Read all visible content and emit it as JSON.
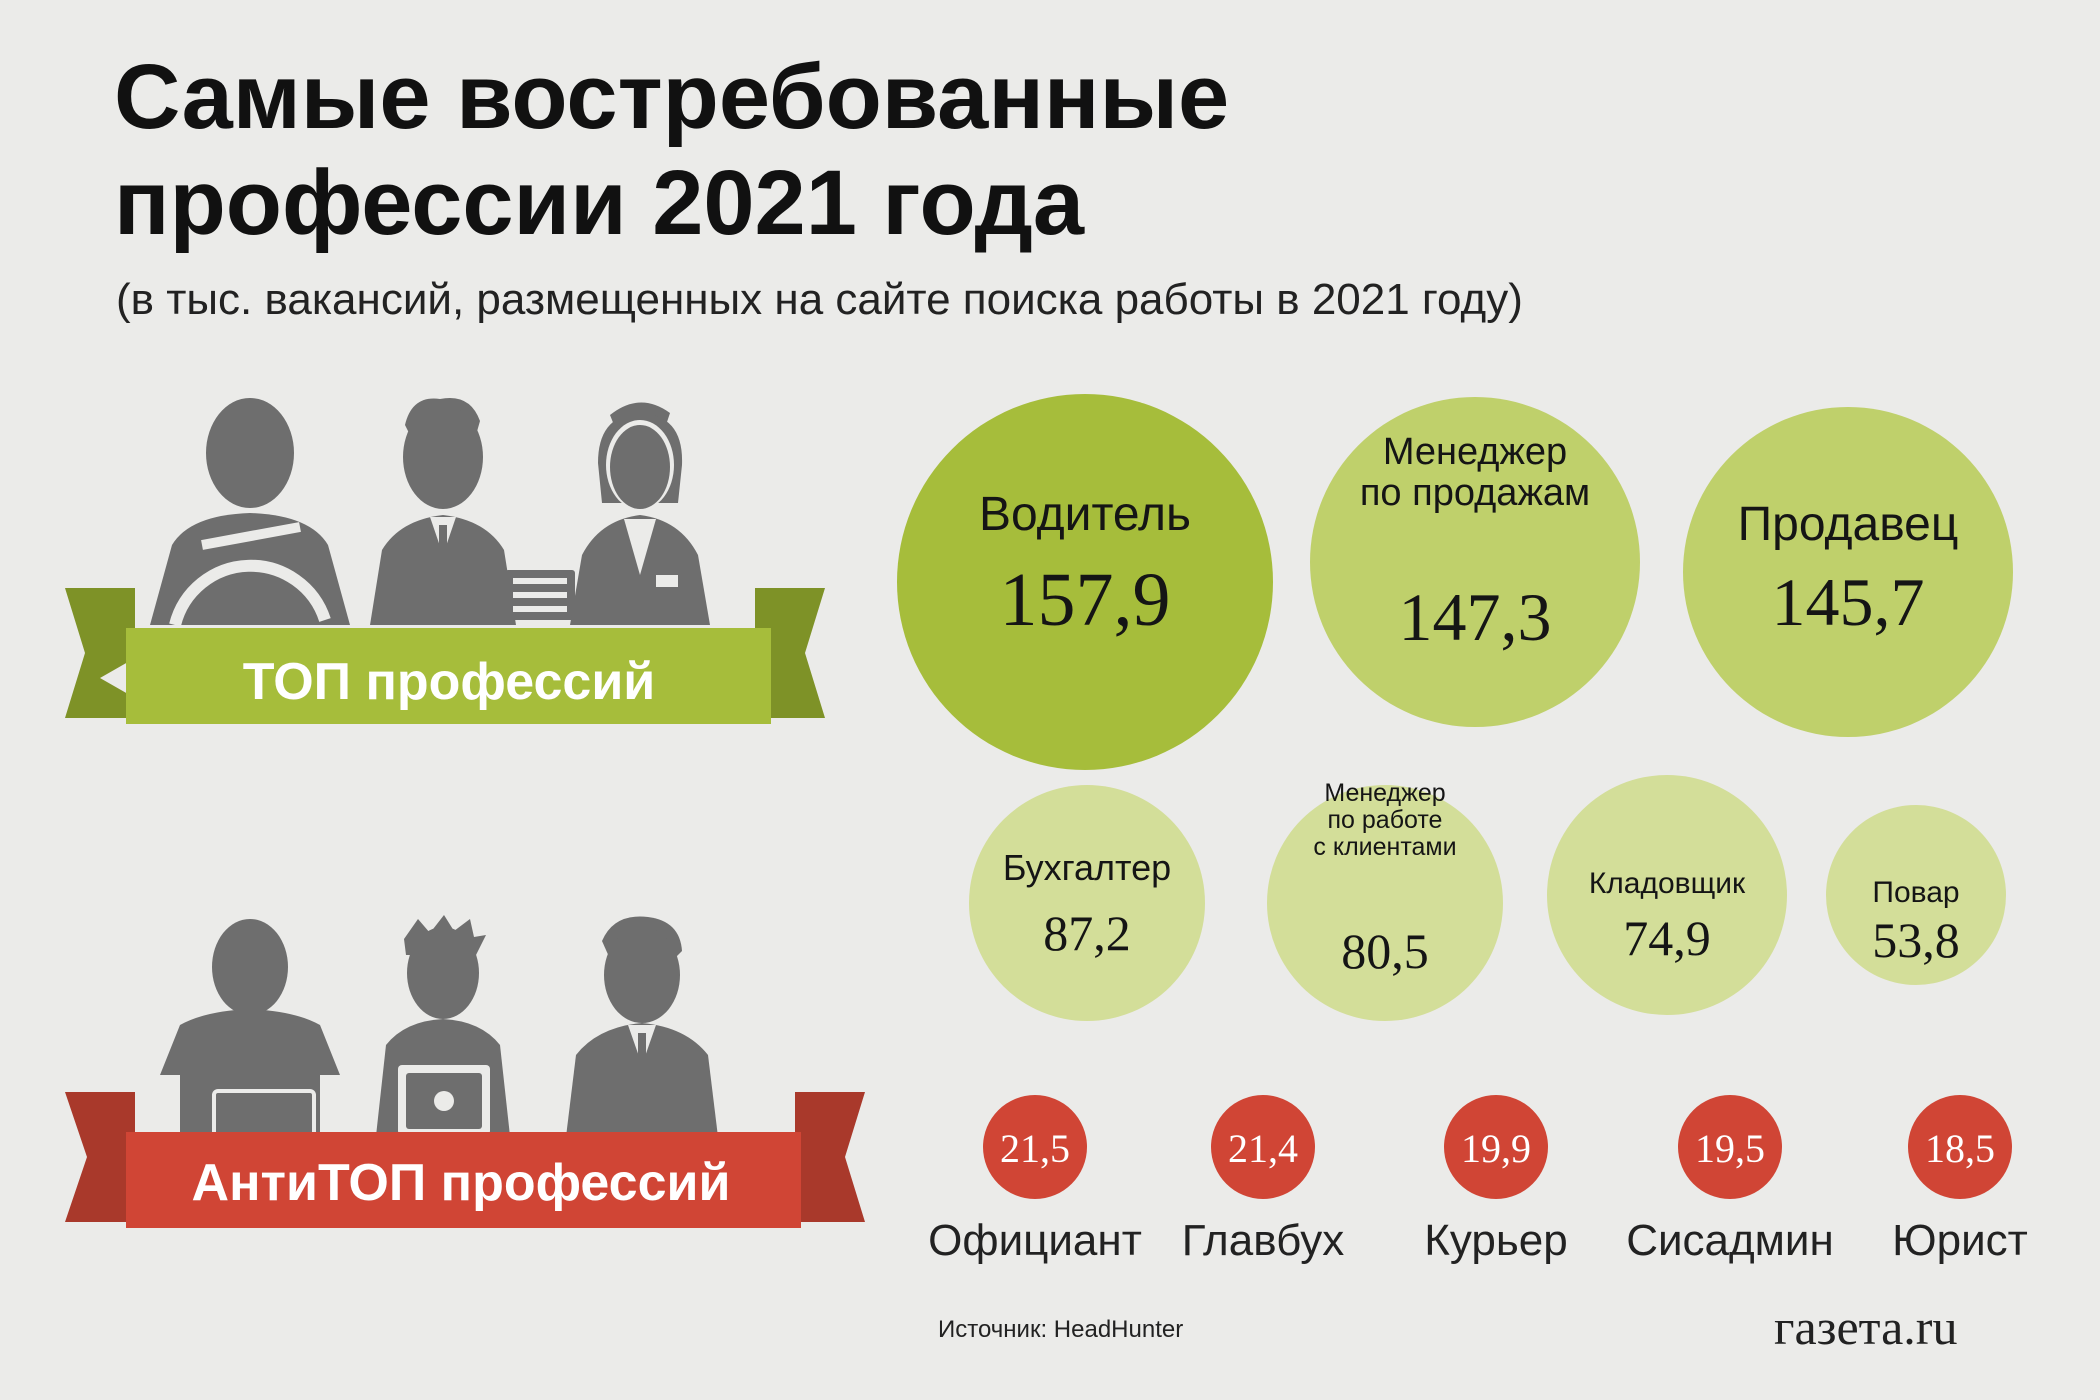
{
  "title_line1": "Самые востребованные",
  "title_line2": "профессии 2021 года",
  "subtitle": "(в тыс. вакансий, размещенных на сайте поиска работы в 2021 году)",
  "ribbon_top": "ТОП профессий",
  "ribbon_anti": "АнтиТОП профессий",
  "source": "Источник: HeadHunter",
  "logo": "газета.ru",
  "colors": {
    "top_green": "#a6bd3b",
    "mid_green": "#bfd06b",
    "light_green": "#d3de99",
    "anti_red": "#d04535",
    "figure_grey": "#6e6e6e"
  },
  "chart_data": {
    "type": "bubble",
    "title": "Самые востребованные профессии 2021 года",
    "unit": "тыс. вакансий",
    "top": [
      {
        "label_lines": [
          "Водитель"
        ],
        "value": "157,9",
        "v": 157.9
      },
      {
        "label_lines": [
          "Менеджер",
          "по продажам"
        ],
        "value": "147,3",
        "v": 147.3
      },
      {
        "label_lines": [
          "Продавец"
        ],
        "value": "145,7",
        "v": 145.7
      },
      {
        "label_lines": [
          "Бухгалтер"
        ],
        "value": "87,2",
        "v": 87.2
      },
      {
        "label_lines": [
          "Менеджер",
          "по работе",
          "с клиентами"
        ],
        "value": "80,5",
        "v": 80.5
      },
      {
        "label_lines": [
          "Кладовщик"
        ],
        "value": "74,9",
        "v": 74.9
      },
      {
        "label_lines": [
          "Повар"
        ],
        "value": "53,8",
        "v": 53.8
      }
    ],
    "anti": [
      {
        "label": "Официант",
        "value": "21,5",
        "v": 21.5
      },
      {
        "label": "Главбух",
        "value": "21,4",
        "v": 21.4
      },
      {
        "label": "Курьер",
        "value": "19,9",
        "v": 19.9
      },
      {
        "label": "Сисадмин",
        "value": "19,5",
        "v": 19.5
      },
      {
        "label": "Юрист",
        "value": "18,5",
        "v": 18.5
      }
    ]
  }
}
